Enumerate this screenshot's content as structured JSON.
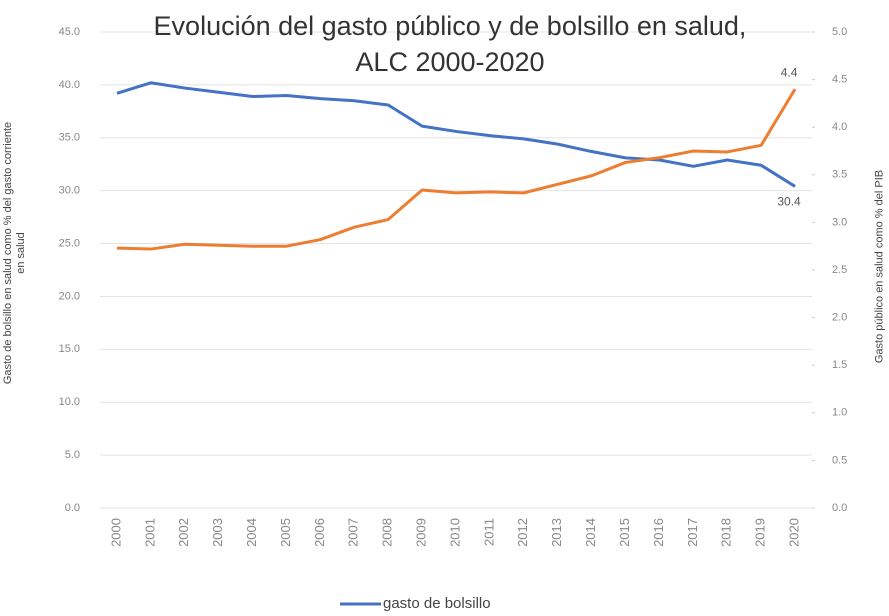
{
  "chart_data": {
    "type": "line",
    "title": "Evolución del gasto público y de bolsillo en salud, ALC 2000-2020",
    "ylabel": "Gasto de bolsillo en salud como % del gasto corriente en salud",
    "y2label": "Gasto público en salud como % del PIB",
    "categories": [
      "2000",
      "2001",
      "2002",
      "2003",
      "2004",
      "2005",
      "2006",
      "2007",
      "2008",
      "2009",
      "2010",
      "2011",
      "2012",
      "2013",
      "2014",
      "2015",
      "2016",
      "2017",
      "2018",
      "2019",
      "2020"
    ],
    "series": [
      {
        "name": "gasto de bolsillo",
        "color": "#4472c4",
        "values": [
          39.2,
          40.2,
          39.7,
          39.3,
          38.9,
          39.0,
          38.7,
          38.5,
          38.1,
          36.1,
          35.6,
          35.2,
          34.9,
          34.4,
          33.7,
          33.1,
          32.9,
          32.3,
          32.9,
          32.4,
          30.4
        ]
      },
      {
        "color": "#ed7d31",
        "axis": "y2",
        "values": [
          2.73,
          2.72,
          2.77,
          2.76,
          2.75,
          2.75,
          2.82,
          2.95,
          3.03,
          3.34,
          3.31,
          3.32,
          3.31,
          3.4,
          3.49,
          3.63,
          3.68,
          3.75,
          3.74,
          3.81,
          4.4
        ]
      }
    ],
    "ylim": [
      0,
      45
    ],
    "yticks": [
      {
        "value": 0,
        "label": "0.0"
      },
      {
        "value": 5,
        "label": "5.0"
      },
      {
        "value": 10,
        "label": "10.0"
      },
      {
        "value": 15,
        "label": "15.0"
      },
      {
        "value": 20,
        "label": "20.0"
      },
      {
        "value": 25,
        "label": "25.0"
      },
      {
        "value": 30,
        "label": "30.0"
      },
      {
        "value": 35,
        "label": "35.0"
      },
      {
        "value": 40,
        "label": "40.0"
      },
      {
        "value": 45,
        "label": "45.0"
      }
    ],
    "y2lim": [
      0,
      5
    ],
    "y2ticks": [
      {
        "value": 0,
        "label": "0.0"
      },
      0.5,
      {
        "value": 1,
        "label": "1.0"
      },
      1.5,
      {
        "value": 2,
        "label": "2.0"
      },
      2.5,
      {
        "value": 3,
        "label": "3.0"
      },
      3.5,
      {
        "value": 4,
        "label": "4.0"
      },
      4.5,
      {
        "value": 5,
        "label": "5.0"
      }
    ],
    "grid": true,
    "legend": "bottom"
  }
}
